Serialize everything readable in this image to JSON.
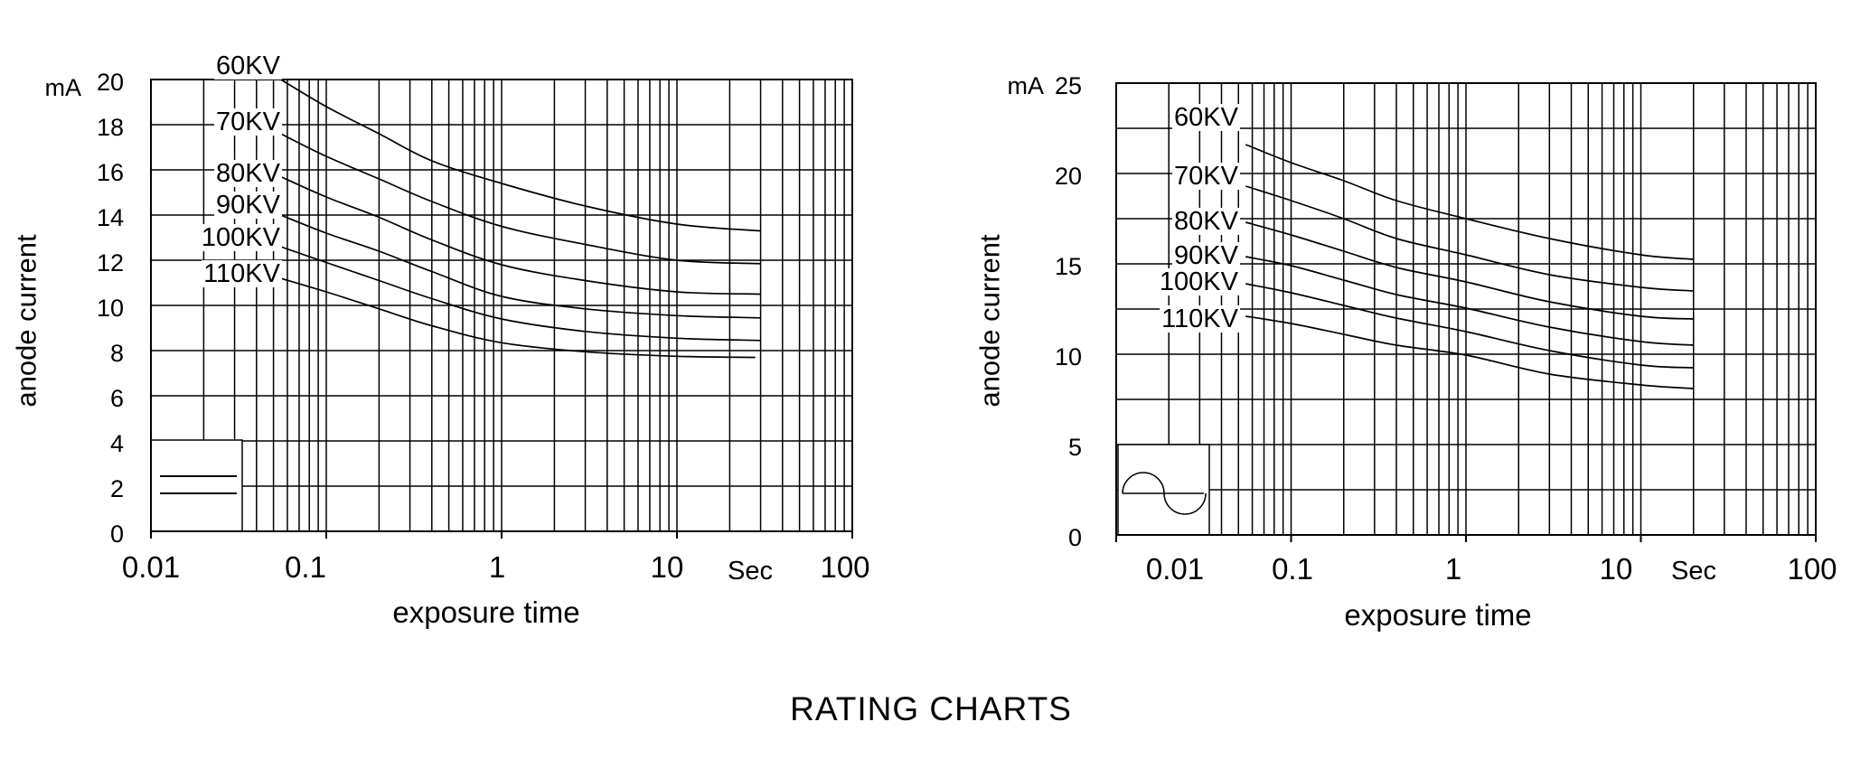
{
  "title": "RATING CHARTS",
  "colors": {
    "background": "#ffffff",
    "line": "#000000",
    "text": "#000000"
  },
  "chart_data": [
    {
      "type": "line",
      "id": "dc-rating-chart",
      "xlabel": "exposure time",
      "ylabel": "anode current",
      "y_unit": "mA",
      "x_unit_label": "Sec",
      "x_scale": "log",
      "xlim": [
        0.01,
        100
      ],
      "ylim": [
        0,
        20
      ],
      "grid": true,
      "y_grid_step": 2,
      "y_tick_labels": [
        "0",
        "2",
        "4",
        "6",
        "8",
        "10",
        "12",
        "14",
        "16",
        "18",
        "20"
      ],
      "x_tick_labels": [
        "0.01",
        "0.1",
        "1",
        "10",
        "100"
      ],
      "x_tick_values": [
        0.01,
        0.1,
        1,
        10,
        100
      ],
      "legend_waveform": "constant-potential-dc",
      "series": [
        {
          "name": "60KV",
          "points": [
            [
              0.055,
              20.0
            ],
            [
              0.1,
              18.8
            ],
            [
              0.2,
              17.6
            ],
            [
              0.4,
              16.4
            ],
            [
              1,
              15.4
            ],
            [
              3,
              14.4
            ],
            [
              10,
              13.6
            ],
            [
              30,
              13.3
            ]
          ]
        },
        {
          "name": "70KV",
          "points": [
            [
              0.055,
              17.6
            ],
            [
              0.1,
              16.6
            ],
            [
              0.2,
              15.6
            ],
            [
              0.4,
              14.6
            ],
            [
              1,
              13.5
            ],
            [
              3,
              12.7
            ],
            [
              10,
              12.0
            ],
            [
              30,
              11.85
            ]
          ]
        },
        {
          "name": "80KV",
          "points": [
            [
              0.055,
              15.7
            ],
            [
              0.1,
              14.8
            ],
            [
              0.2,
              13.9
            ],
            [
              0.4,
              12.9
            ],
            [
              1,
              11.8
            ],
            [
              3,
              11.1
            ],
            [
              10,
              10.6
            ],
            [
              30,
              10.5
            ]
          ]
        },
        {
          "name": "90KV",
          "points": [
            [
              0.055,
              14.0
            ],
            [
              0.1,
              13.2
            ],
            [
              0.2,
              12.4
            ],
            [
              0.4,
              11.5
            ],
            [
              1,
              10.4
            ],
            [
              3,
              9.85
            ],
            [
              10,
              9.55
            ],
            [
              30,
              9.45
            ]
          ]
        },
        {
          "name": "100KV",
          "points": [
            [
              0.055,
              12.6
            ],
            [
              0.1,
              11.9
            ],
            [
              0.2,
              11.1
            ],
            [
              0.4,
              10.3
            ],
            [
              1,
              9.4
            ],
            [
              3,
              8.85
            ],
            [
              10,
              8.55
            ],
            [
              30,
              8.45
            ]
          ]
        },
        {
          "name": "110KV",
          "points": [
            [
              0.055,
              11.2
            ],
            [
              0.1,
              10.6
            ],
            [
              0.2,
              9.85
            ],
            [
              0.4,
              9.1
            ],
            [
              1,
              8.35
            ],
            [
              3,
              7.95
            ],
            [
              10,
              7.75
            ],
            [
              28,
              7.7
            ]
          ]
        }
      ]
    },
    {
      "type": "line",
      "id": "ac-rating-chart",
      "xlabel": "exposure time",
      "ylabel": "anode current",
      "y_unit": "mA",
      "x_unit_label": "Sec",
      "x_scale": "log",
      "xlim": [
        0.01,
        100
      ],
      "ylim": [
        0,
        25
      ],
      "grid": true,
      "y_grid_step": 2.5,
      "y_tick_labels": [
        "0",
        "5",
        "10",
        "15",
        "20",
        "25"
      ],
      "x_tick_labels": [
        "0.01",
        "0.1",
        "1",
        "10",
        "100"
      ],
      "x_tick_values": [
        0.01,
        0.1,
        1,
        10,
        100
      ],
      "legend_waveform": "ac-sine",
      "series": [
        {
          "name": "60KV",
          "points": [
            [
              0.055,
              21.6
            ],
            [
              0.1,
              20.6
            ],
            [
              0.2,
              19.6
            ],
            [
              0.4,
              18.5
            ],
            [
              1,
              17.5
            ],
            [
              3,
              16.4
            ],
            [
              10,
              15.5
            ],
            [
              20,
              15.25
            ]
          ]
        },
        {
          "name": "70KV",
          "points": [
            [
              0.055,
              19.3
            ],
            [
              0.1,
              18.5
            ],
            [
              0.2,
              17.5
            ],
            [
              0.4,
              16.4
            ],
            [
              1,
              15.5
            ],
            [
              3,
              14.4
            ],
            [
              10,
              13.7
            ],
            [
              20,
              13.5
            ]
          ]
        },
        {
          "name": "80KV",
          "points": [
            [
              0.055,
              17.3
            ],
            [
              0.1,
              16.6
            ],
            [
              0.2,
              15.7
            ],
            [
              0.4,
              14.8
            ],
            [
              1,
              14.0
            ],
            [
              3,
              12.9
            ],
            [
              10,
              12.1
            ],
            [
              20,
              11.95
            ]
          ]
        },
        {
          "name": "90KV",
          "points": [
            [
              0.055,
              15.4
            ],
            [
              0.1,
              14.9
            ],
            [
              0.2,
              14.1
            ],
            [
              0.4,
              13.3
            ],
            [
              1,
              12.55
            ],
            [
              3,
              11.5
            ],
            [
              10,
              10.7
            ],
            [
              20,
              10.5
            ]
          ]
        },
        {
          "name": "100KV",
          "points": [
            [
              0.055,
              13.9
            ],
            [
              0.1,
              13.4
            ],
            [
              0.2,
              12.7
            ],
            [
              0.4,
              12.0
            ],
            [
              1,
              11.25
            ],
            [
              3,
              10.2
            ],
            [
              10,
              9.4
            ],
            [
              20,
              9.25
            ]
          ]
        },
        {
          "name": "110KV",
          "points": [
            [
              0.055,
              12.1
            ],
            [
              0.1,
              11.7
            ],
            [
              0.2,
              11.1
            ],
            [
              0.4,
              10.5
            ],
            [
              1,
              9.95
            ],
            [
              3,
              8.9
            ],
            [
              10,
              8.3
            ],
            [
              20,
              8.1
            ]
          ]
        }
      ]
    }
  ]
}
